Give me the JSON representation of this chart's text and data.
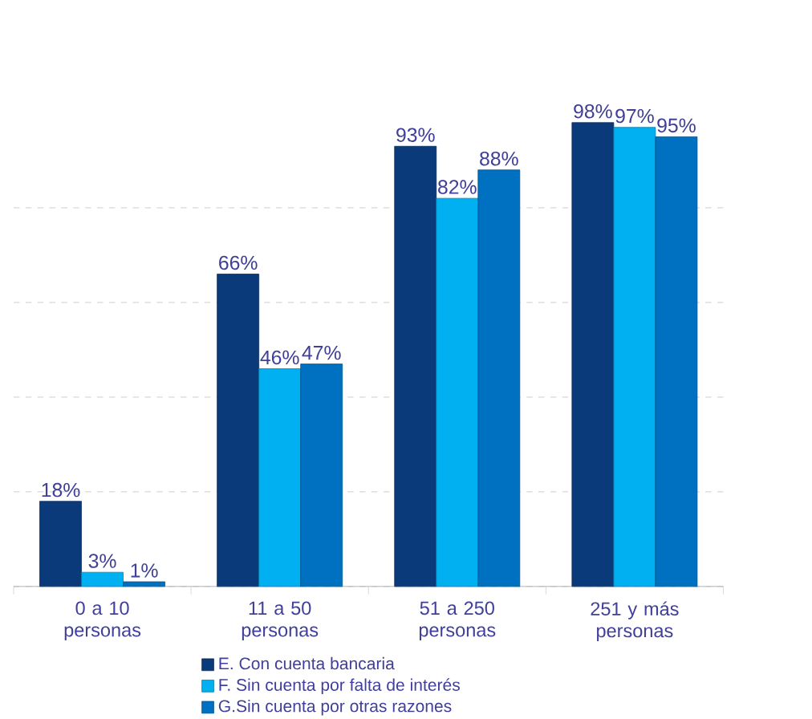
{
  "chart_data": {
    "type": "bar",
    "categories": [
      "0 a 10 personas",
      "11 a 50 personas",
      "51 a 250 personas",
      "251 y más personas"
    ],
    "series": [
      {
        "name": "E. Con cuenta bancaria",
        "color": "#0b3a7a",
        "values": [
          18,
          66,
          93,
          98
        ],
        "value_labels": [
          "18%",
          "66%",
          "93%",
          "98%"
        ]
      },
      {
        "name": "F. Sin cuenta por falta de interés",
        "color": "#00b0f0",
        "values": [
          3,
          46,
          82,
          97
        ],
        "value_labels": [
          "3%",
          "46%",
          "82%",
          "97%"
        ]
      },
      {
        "name": "G.Sin cuenta por otras razones",
        "color": "#0070c0",
        "values": [
          1,
          47,
          88,
          95
        ],
        "value_labels": [
          "1%",
          "47%",
          "88%",
          "95%"
        ]
      }
    ],
    "tick_labels": "x",
    "grid": "y",
    "legend": "bottom"
  }
}
